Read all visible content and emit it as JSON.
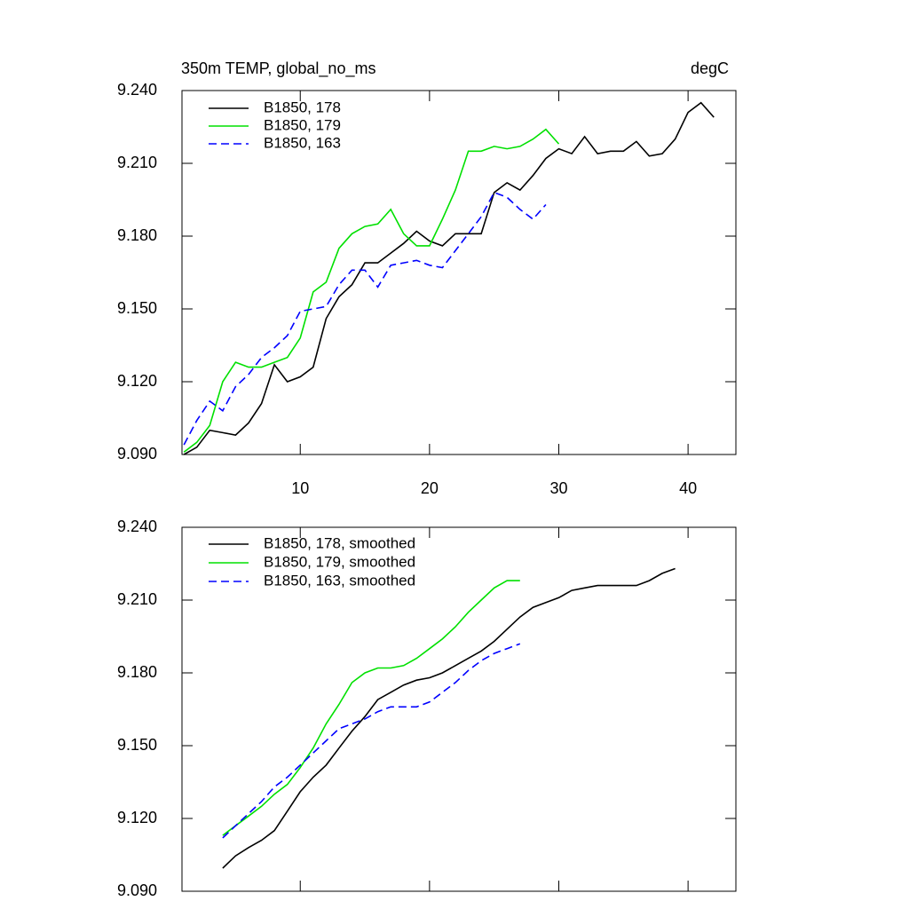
{
  "chart_data": [
    {
      "type": "line",
      "title": "350m TEMP, global_no_ms",
      "units": "degC",
      "xlim": [
        0.85,
        43.7
      ],
      "xticks": [
        10,
        20,
        30,
        40
      ],
      "ylim": [
        9.09,
        9.24
      ],
      "yticks": [
        {
          "value": 9.09,
          "label": "9.090"
        },
        {
          "value": 9.12,
          "label": "9.120"
        },
        {
          "value": 9.15,
          "label": "9.150"
        },
        {
          "value": 9.18,
          "label": "9.180"
        },
        {
          "value": 9.21,
          "label": "9.210"
        },
        {
          "value": 9.24,
          "label": "9.240"
        }
      ],
      "legend": "top-left",
      "series": [
        {
          "name": "B1850, 178",
          "color": "#000000",
          "dash": false,
          "x": [
            1,
            2,
            3,
            4,
            5,
            6,
            7,
            8,
            9,
            10,
            11,
            12,
            13,
            14,
            15,
            16,
            17,
            18,
            19,
            20,
            21,
            22,
            23,
            24,
            25,
            26,
            27,
            28,
            29,
            30,
            31,
            32,
            33,
            34,
            35,
            36,
            37,
            38,
            39,
            40,
            41,
            42
          ],
          "values": [
            9.09,
            9.093,
            9.1,
            9.099,
            9.098,
            9.103,
            9.111,
            9.127,
            9.12,
            9.122,
            9.126,
            9.146,
            9.155,
            9.16,
            9.169,
            9.169,
            9.173,
            9.177,
            9.182,
            9.178,
            9.176,
            9.181,
            9.181,
            9.181,
            9.198,
            9.202,
            9.199,
            9.205,
            9.212,
            9.216,
            9.214,
            9.221,
            9.214,
            9.215,
            9.215,
            9.219,
            9.213,
            9.214,
            9.22,
            9.231,
            9.235,
            9.229
          ]
        },
        {
          "name": "B1850, 179",
          "color": "#00e000",
          "dash": false,
          "x": [
            1,
            2,
            3,
            4,
            5,
            6,
            7,
            8,
            9,
            10,
            11,
            12,
            13,
            14,
            15,
            16,
            17,
            18,
            19,
            20,
            21,
            22,
            23,
            24,
            25,
            26,
            27,
            28,
            29,
            30
          ],
          "values": [
            9.091,
            9.095,
            9.102,
            9.12,
            9.128,
            9.126,
            9.126,
            9.128,
            9.13,
            9.138,
            9.157,
            9.161,
            9.175,
            9.181,
            9.184,
            9.185,
            9.191,
            9.181,
            9.176,
            9.176,
            9.187,
            9.199,
            9.215,
            9.215,
            9.217,
            9.216,
            9.217,
            9.22,
            9.224,
            9.218
          ]
        },
        {
          "name": "B1850, 163",
          "color": "#0000ff",
          "dash": true,
          "x": [
            1,
            2,
            3,
            4,
            5,
            6,
            7,
            8,
            9,
            10,
            11,
            12,
            13,
            14,
            15,
            16,
            17,
            18,
            19,
            20,
            21,
            22,
            23,
            24,
            25,
            26,
            27,
            28,
            29
          ],
          "values": [
            9.094,
            9.104,
            9.112,
            9.108,
            9.118,
            9.123,
            9.13,
            9.134,
            9.139,
            9.149,
            9.15,
            9.151,
            9.16,
            9.166,
            9.166,
            9.159,
            9.168,
            9.169,
            9.17,
            9.168,
            9.167,
            9.174,
            9.181,
            9.188,
            9.198,
            9.196,
            9.191,
            9.187,
            9.193
          ]
        }
      ]
    },
    {
      "type": "line",
      "xlim": [
        0.85,
        43.7
      ],
      "xticks": [
        10,
        20,
        30,
        40
      ],
      "ylim": [
        9.09,
        9.24
      ],
      "yticks": [
        {
          "value": 9.09,
          "label": "9.090"
        },
        {
          "value": 9.12,
          "label": "9.120"
        },
        {
          "value": 9.15,
          "label": "9.150"
        },
        {
          "value": 9.18,
          "label": "9.180"
        },
        {
          "value": 9.21,
          "label": "9.210"
        },
        {
          "value": 9.24,
          "label": "9.240"
        }
      ],
      "legend": "top-left",
      "series": [
        {
          "name": "B1850, 178, smoothed",
          "color": "#000000",
          "dash": false,
          "x": [
            4,
            5,
            6,
            7,
            8,
            9,
            10,
            11,
            12,
            13,
            14,
            15,
            16,
            17,
            18,
            19,
            20,
            21,
            22,
            23,
            24,
            25,
            26,
            27,
            28,
            29,
            30,
            31,
            32,
            33,
            34,
            35,
            36,
            37,
            38,
            39
          ],
          "values": [
            9.0995,
            9.1046,
            9.108,
            9.111,
            9.115,
            9.123,
            9.131,
            9.137,
            9.142,
            9.149,
            9.156,
            9.162,
            9.169,
            9.172,
            9.175,
            9.177,
            9.178,
            9.18,
            9.183,
            9.186,
            9.189,
            9.193,
            9.198,
            9.203,
            9.207,
            9.209,
            9.211,
            9.214,
            9.215,
            9.216,
            9.216,
            9.216,
            9.216,
            9.218,
            9.221,
            9.223
          ]
        },
        {
          "name": "B1850, 179, smoothed",
          "color": "#00e000",
          "dash": false,
          "x": [
            4,
            5,
            6,
            7,
            8,
            9,
            10,
            11,
            12,
            13,
            14,
            15,
            16,
            17,
            18,
            19,
            20,
            21,
            22,
            23,
            24,
            25,
            26,
            27
          ],
          "values": [
            9.113,
            9.117,
            9.121,
            9.125,
            9.13,
            9.134,
            9.141,
            9.149,
            9.159,
            9.167,
            9.176,
            9.18,
            9.182,
            9.182,
            9.183,
            9.186,
            9.19,
            9.194,
            9.199,
            9.205,
            9.21,
            9.215,
            9.218,
            9.218
          ]
        },
        {
          "name": "B1850, 163, smoothed",
          "color": "#0000ff",
          "dash": true,
          "x": [
            4,
            5,
            6,
            7,
            8,
            9,
            10,
            11,
            12,
            13,
            14,
            15,
            16,
            17,
            18,
            19,
            20,
            21,
            22,
            23,
            24,
            25,
            26,
            27
          ],
          "values": [
            9.112,
            9.117,
            9.122,
            9.127,
            9.133,
            9.137,
            9.142,
            9.147,
            9.152,
            9.157,
            9.159,
            9.161,
            9.164,
            9.166,
            9.166,
            9.166,
            9.168,
            9.172,
            9.176,
            9.181,
            9.185,
            9.188,
            9.19,
            9.192
          ]
        }
      ]
    }
  ]
}
